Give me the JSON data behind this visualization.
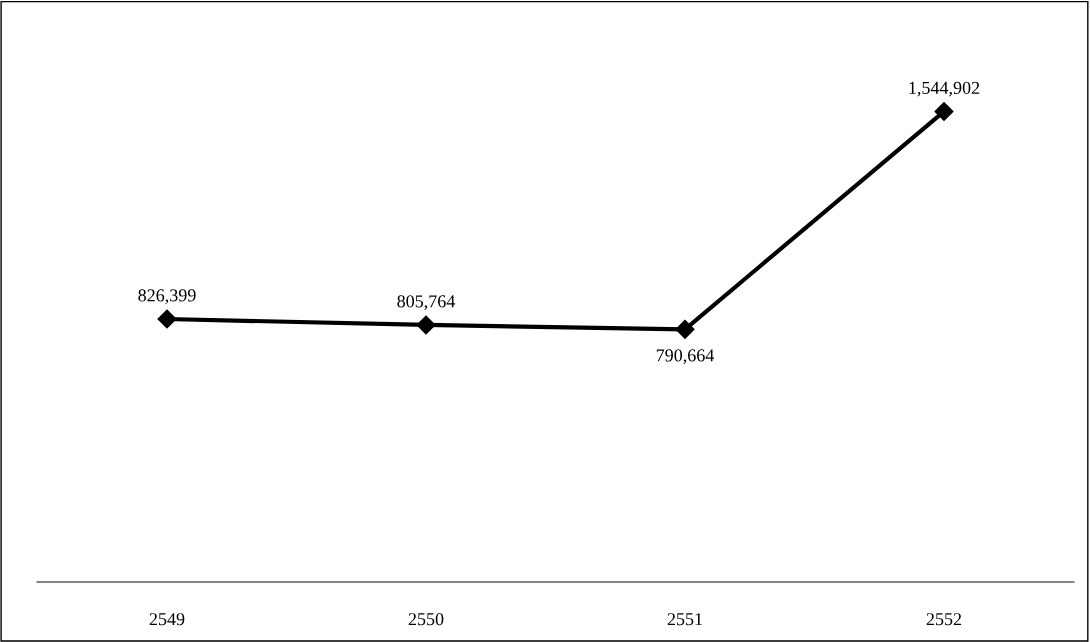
{
  "chart_data": {
    "type": "line",
    "categories": [
      "2549",
      "2550",
      "2551",
      "2552"
    ],
    "series": [
      {
        "color": "#000000",
        "values": [
          826399,
          805764,
          790664,
          1544902
        ],
        "value_labels": [
          "826,399",
          "805,764",
          "790,664",
          "1,544,902"
        ]
      }
    ],
    "marker": "diamond",
    "line_style": "solid",
    "tick_labels": "x",
    "grid": false,
    "legend": false
  }
}
